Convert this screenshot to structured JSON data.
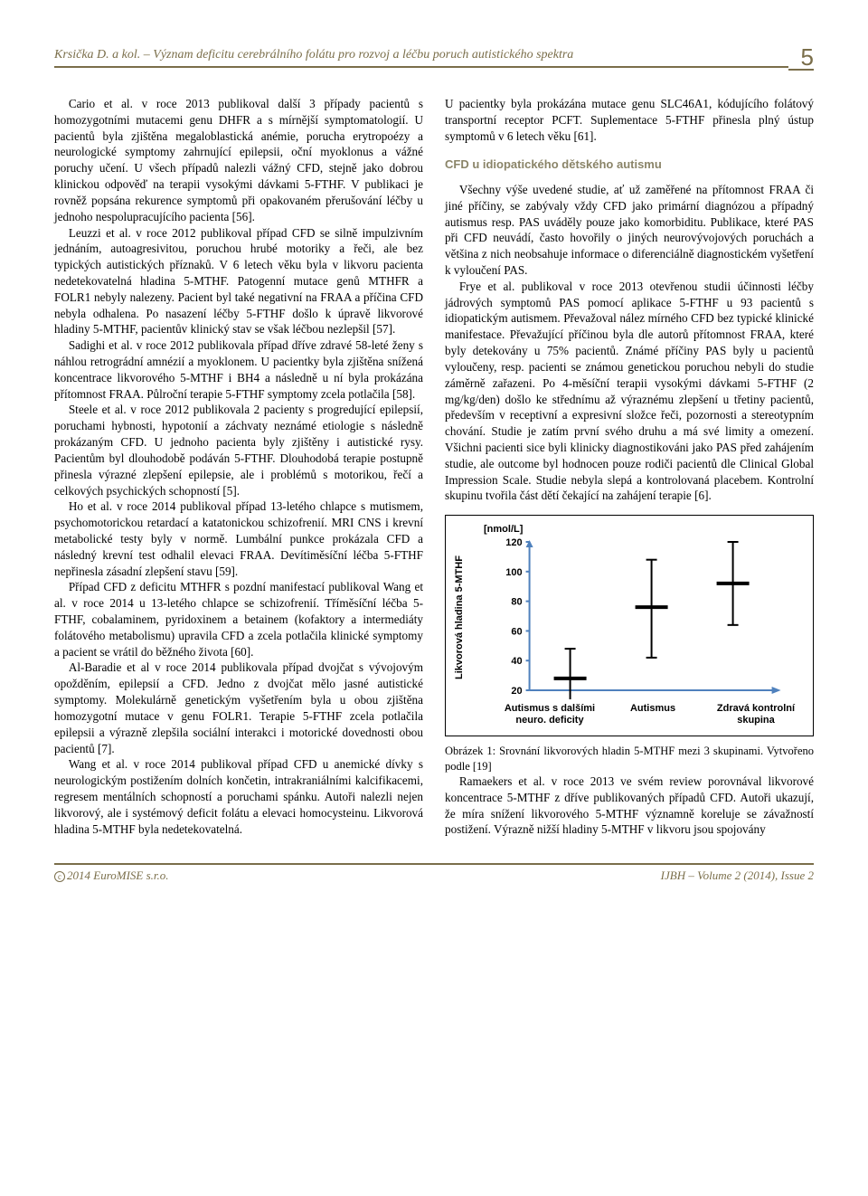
{
  "runningHead": "Krsička D. a kol. – Význam deficitu cerebrálního folátu pro rozvoj a léčbu poruch autistického spektra",
  "pageNumber": "5",
  "leftColumn": {
    "p1": "Cario et al. v roce 2013 publikoval další 3 případy pacientů s homozygotními mutacemi genu DHFR a s mírnější symptomatologií. U pacientů byla zjištěna megaloblastická anémie, porucha erytropoézy a neurologické symptomy zahrnující epilepsii, oční myoklonus a vážné poruchy učení. U všech případů nalezli vážný CFD, stejně jako dobrou klinickou odpověď na terapii vysokými dávkami 5-FTHF. V publikaci je rovněž popsána rekurence symptomů při opakovaném přerušování léčby u jednoho nespolupracujícího pacienta [56].",
    "p2": "Leuzzi et al. v roce 2012 publikoval případ CFD se silně impulzivním jednáním, autoagresivitou, poruchou hrubé motoriky a řeči, ale bez typických autistických příznaků. V 6 letech věku byla v likvoru pacienta nedetekovatelná hladina 5-MTHF. Patogenní mutace genů MTHFR a FOLR1 nebyly nalezeny. Pacient byl také negativní na FRAA a příčina CFD nebyla odhalena. Po nasazení léčby 5-FTHF došlo k úpravě likvorové hladiny 5-MTHF, pacientův klinický stav se však léčbou nezlepšil [57].",
    "p3": "Sadighi et al. v roce 2012 publikovala případ dříve zdravé 58-leté ženy s náhlou retrográdní amnézií a myoklonem. U pacientky byla zjištěna snížená koncentrace likvorového 5-MTHF i BH4 a následně u ní byla prokázána přítomnost FRAA. Půlroční terapie 5-FTHF symptomy zcela potlačila [58].",
    "p4": "Steele et al. v roce 2012 publikovala 2 pacienty s progredující epilepsií, poruchami hybnosti, hypotonií a záchvaty neznámé etiologie s následně prokázaným CFD. U jednoho pacienta byly zjištěny i autistické rysy. Pacientům byl dlouhodobě podáván 5-FTHF. Dlouhodobá terapie postupně přinesla výrazné zlepšení epilepsie, ale i problémů s motorikou, řečí a celkových psychických schopností [5].",
    "p5": "Ho et al. v roce 2014 publikoval případ 13-letého chlapce s mutismem, psychomotorickou retardací a katatonickou schizofrenií. MRI CNS i krevní metabolické testy byly v normě. Lumbální punkce prokázala CFD a následný krevní test odhalil elevaci FRAA. Devítiměsíční léčba 5-FTHF nepřinesla zásadní zlepšení stavu [59].",
    "p6": "Případ CFD z deficitu MTHFR s pozdní manifestací publikoval Wang et al. v roce 2014 u 13-letého chlapce se schizofrenií. Tříměsíční léčba 5-FTHF, cobalaminem, pyridoxinem a betainem (kofaktory a intermediáty folátového metabolismu) upravila CFD a zcela potlačila klinické symptomy a pacient se vrátil do běžného života [60].",
    "p7": "Al-Baradie et al v roce 2014 publikovala případ dvojčat s vývojovým opožděním, epilepsií a CFD. Jedno z dvojčat mělo jasné autistické symptomy. Molekulárně genetickým vyšetřením byla u obou zjištěna homozygotní mutace v genu FOLR1. Terapie 5-FTHF zcela potlačila epilepsii a výrazně zlepšila sociální interakci i motorické dovednosti obou pacientů [7].",
    "p8": "Wang et al. v roce 2014 publikoval případ CFD u anemické dívky s neurologickým postižením dolních končetin, intrakraniálními kalcifikacemi, regresem mentálních schopností a poruchami spánku. Autoři nalezli nejen likvorový, ale i systémový deficit folátu a elevaci homocysteinu. Likvorová hladina 5-MTHF byla nedetekovatelná."
  },
  "rightColumn": {
    "p1": "U pacientky byla prokázána mutace genu SLC46A1, kódujícího folátový transportní receptor PCFT. Suplementace 5-FTHF přinesla plný ústup symptomů v 6 letech věku [61].",
    "heading": "CFD u idiopatického dětského autismu",
    "p2": "Všechny výše uvedené studie, ať už zaměřené na přítomnost FRAA či jiné příčiny, se zabývaly vždy CFD jako primární diagnózou a případný autismus resp. PAS uváděly pouze jako komorbiditu. Publikace, které PAS při CFD neuvádí, často hovořily o jiných neurovývojových poruchách a většina z nich neobsahuje informace o diferenciálně diagnostickém vyšetření k vyloučení PAS.",
    "p3": "Frye et al. publikoval v roce 2013 otevřenou studii účinnosti léčby jádrových symptomů PAS pomocí aplikace 5-FTHF u 93 pacientů s idiopatickým autismem. Převažoval nález mírného CFD bez typické klinické manifestace. Převažující příčinou byla dle autorů přítomnost FRAA, které byly detekovány u 75% pacientů. Známé příčiny PAS byly u pacientů vyloučeny, resp. pacienti se známou genetickou poruchou nebyli do studie záměrně zařazeni. Po 4-měsíční terapii vysokými dávkami 5-FTHF (2 mg/kg/den) došlo ke střednímu až výraznému zlepšení u třetiny pacientů, především v receptivní a expresivní složce řeči, pozornosti a stereotypním chování. Studie je zatím první svého druhu a má své limity a omezení. Všichni pacienti sice byli klinicky diagnostikováni jako PAS před zahájením studie, ale outcome byl hodnocen pouze rodiči pacientů dle Clinical Global Impression Scale. Studie nebyla slepá a kontrolovaná placebem. Kontrolní skupinu tvořila část dětí čekající na zahájení terapie [6].",
    "p4": "Ramaekers et al. v roce 2013 ve svém review porovnával likvorové koncentrace 5-MTHF z dříve publikovaných případů CFD. Autoři ukazují, že míra snížení likvorového 5-MTHF významně koreluje se závažností postižení. Výrazně nižší hladiny 5-MTHF v likvoru jsou spojovány"
  },
  "chart": {
    "type": "boxplot",
    "yunit": "[nmol/L]",
    "ylabel": "Likvorová hladina 5-MTHF",
    "ylim": [
      20,
      120
    ],
    "ytick_step": 20,
    "yticks": [
      "120",
      "100",
      "80",
      "60",
      "40",
      "20"
    ],
    "axis_color": "#4f81bd",
    "series_color": "#000000",
    "background_color": "#ffffff",
    "categories": [
      {
        "label": "Autismus s dalšími neuro. deficity",
        "mean": 28,
        "low": 10,
        "high": 48
      },
      {
        "label": "Autismus",
        "mean": 76,
        "low": 42,
        "high": 108
      },
      {
        "label": "Zdravá kontrolní skupina",
        "mean": 92,
        "low": 64,
        "high": 120
      }
    ]
  },
  "caption": "Obrázek 1: Srovnání likvorových hladin 5-MTHF mezi 3 skupinami. Vytvořeno podle [19]",
  "footer": {
    "left": "2014 EuroMISE s.r.o.",
    "right": "IJBH – Volume 2 (2014), Issue 2",
    "copyright": "c"
  }
}
